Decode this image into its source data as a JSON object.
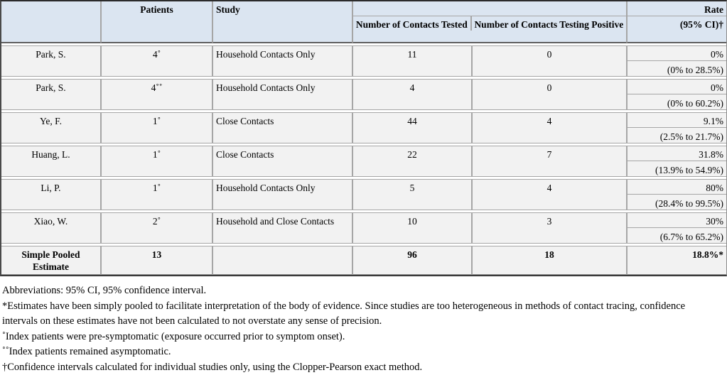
{
  "table": {
    "header": {
      "corner": "",
      "patients": "Patients",
      "study": "Study",
      "contacts_group": "",
      "tested": "Number of Contacts Tested",
      "positive": "Number of Contacts Testing Positive",
      "rate_line1": "Rate",
      "rate_line2": "(95% CI)†"
    },
    "rows": [
      {
        "author": "Park, S.",
        "patients": "4˚",
        "study": "Household Contacts Only",
        "tested": "11",
        "positive": "0",
        "rate": "0%",
        "ci": "(0% to 28.5%)"
      },
      {
        "author": "Park, S.",
        "patients": "4˚˚",
        "study": "Household Contacts Only",
        "tested": "4",
        "positive": "0",
        "rate": "0%",
        "ci": "(0% to 60.2%)"
      },
      {
        "author": "Ye, F.",
        "patients": "1˚",
        "study": "Close Contacts",
        "tested": "44",
        "positive": "4",
        "rate": "9.1%",
        "ci": "(2.5% to 21.7%)"
      },
      {
        "author": "Huang, L.",
        "patients": "1˚",
        "study": "Close Contacts",
        "tested": "22",
        "positive": "7",
        "rate": "31.8%",
        "ci": "(13.9% to 54.9%)"
      },
      {
        "author": "Li, P.",
        "patients": "1˚",
        "study": "Household Contacts Only",
        "tested": "5",
        "positive": "4",
        "rate": "80%",
        "ci": "(28.4% to 99.5%)"
      },
      {
        "author": "Xiao, W.",
        "patients": "2˚",
        "study": "Household and Close Contacts",
        "tested": "10",
        "positive": "3",
        "rate": "30%",
        "ci": "(6.7% to 65.2%)"
      }
    ],
    "pooled": {
      "label": "Simple Pooled Estimate",
      "patients": "13",
      "study": "",
      "tested": "96",
      "positive": "18",
      "rate": "18.8%*"
    }
  },
  "footnotes": [
    "Abbreviations: 95% CI, 95% confidence interval.",
    "*Estimates have been simply pooled to facilitate interpretation of the body of evidence. Since studies are too heterogeneous in methods of contact tracing, confidence intervals on these estimates have not been calculated to not overstate any sense of precision.",
    "˚Index patients were pre-symptomatic (exposure occurred prior to symptom onset).",
    "˚˚Index patients remained asymptomatic.",
    "†Confidence intervals calculated for individual studies only, using the Clopper-Pearson exact method."
  ],
  "colors": {
    "header_bg": "#dbe5f1",
    "row_bg": "#f2f2f2",
    "grid_border": "#a6a6a6",
    "outer_border": "#3a3a3a"
  }
}
